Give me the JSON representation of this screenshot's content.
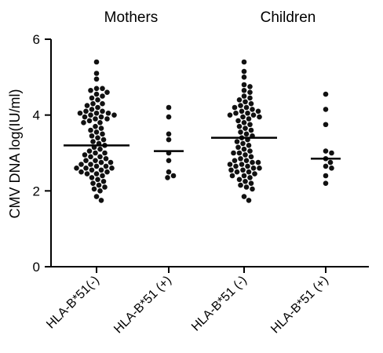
{
  "chart_data": {
    "type": "scatter",
    "group_titles": [
      "Mothers",
      "Children"
    ],
    "ylabel": "CMV DNA log(IU/ml)",
    "ylim": [
      0,
      6
    ],
    "yticks": [
      0,
      2,
      4,
      6
    ],
    "categories": [
      "HLA-B*51(-)",
      "HLA-B*51 (+)",
      "HLA-B*51 (-)",
      "HLA-B*51 (+)"
    ],
    "series": [
      {
        "category": "HLA-B*51(-)",
        "mean": 3.2,
        "values": [
          5.4,
          5.1,
          4.95,
          4.7,
          4.7,
          4.65,
          4.6,
          4.55,
          4.5,
          4.45,
          4.4,
          4.3,
          4.3,
          4.25,
          4.2,
          4.15,
          4.1,
          4.1,
          4.05,
          4.05,
          4.05,
          4.0,
          4.0,
          3.95,
          3.95,
          3.9,
          3.9,
          3.85,
          3.8,
          3.8,
          3.7,
          3.65,
          3.6,
          3.55,
          3.5,
          3.45,
          3.4,
          3.35,
          3.3,
          3.25,
          3.2,
          3.15,
          3.1,
          3.05,
          3.0,
          3.0,
          2.95,
          2.9,
          2.9,
          2.85,
          2.8,
          2.8,
          2.75,
          2.75,
          2.7,
          2.7,
          2.65,
          2.65,
          2.6,
          2.6,
          2.6,
          2.55,
          2.55,
          2.5,
          2.5,
          2.45,
          2.45,
          2.4,
          2.35,
          2.3,
          2.25,
          2.2,
          2.15,
          2.1,
          2.05,
          2.0,
          1.85,
          1.75
        ]
      },
      {
        "category": "HLA-B*51 (+)",
        "mean": 3.05,
        "values": [
          4.2,
          3.95,
          3.5,
          3.35,
          3.0,
          2.8,
          2.5,
          2.4,
          2.35
        ]
      },
      {
        "category": "HLA-B*51 (-)",
        "mean": 3.4,
        "values": [
          5.4,
          5.15,
          5.0,
          4.8,
          4.75,
          4.65,
          4.6,
          4.5,
          4.45,
          4.4,
          4.35,
          4.3,
          4.25,
          4.2,
          4.2,
          4.15,
          4.1,
          4.1,
          4.05,
          4.05,
          4.0,
          4.0,
          3.95,
          3.95,
          3.9,
          3.85,
          3.8,
          3.75,
          3.7,
          3.65,
          3.6,
          3.55,
          3.5,
          3.45,
          3.4,
          3.35,
          3.3,
          3.25,
          3.2,
          3.15,
          3.1,
          3.05,
          3.0,
          3.0,
          2.95,
          2.9,
          2.85,
          2.8,
          2.8,
          2.75,
          2.75,
          2.7,
          2.7,
          2.65,
          2.65,
          2.6,
          2.6,
          2.55,
          2.55,
          2.5,
          2.5,
          2.45,
          2.4,
          2.4,
          2.35,
          2.3,
          2.25,
          2.2,
          2.15,
          2.1,
          2.05,
          1.85,
          1.75
        ]
      },
      {
        "category": "HLA-B*51 (+)",
        "mean": 2.85,
        "values": [
          4.55,
          4.15,
          3.75,
          3.05,
          3.0,
          2.85,
          2.75,
          2.65,
          2.6,
          2.4,
          2.2
        ]
      }
    ],
    "grid": false,
    "legend": "none"
  }
}
